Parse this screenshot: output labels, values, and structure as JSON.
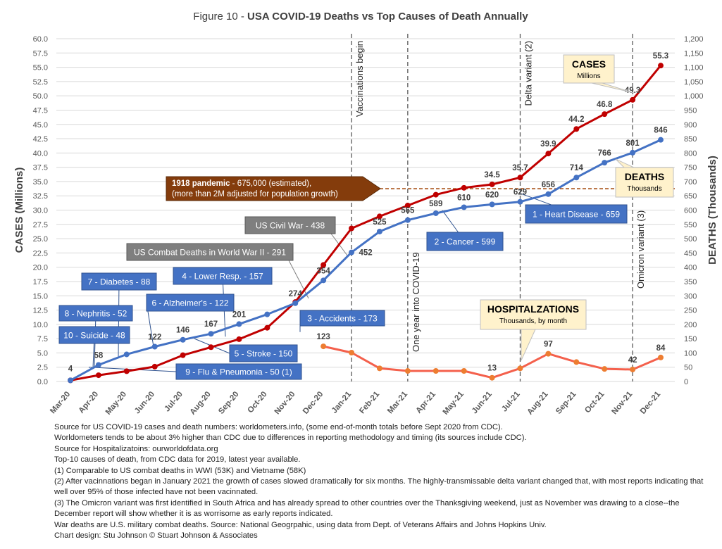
{
  "chart_data": {
    "type": "line",
    "title_prefix": "Figure 10 - ",
    "title": "USA COVID-19 Deaths vs Top Causes of Death Annually",
    "ylabel_left": "CASES (Millions)",
    "ylabel_right": "DEATHS (Thousands)",
    "left_axis": {
      "min": 0,
      "max": 60,
      "step": 2.5
    },
    "right_axis": {
      "min": 0,
      "max": 1200,
      "step": 50
    },
    "categories": [
      "Mar-20",
      "Apr-20",
      "May-20",
      "Jun-20",
      "Jul-20",
      "Aug-20",
      "Sep-20",
      "Oct-20",
      "Nov-20",
      "Dec-20",
      "Jan-21",
      "Feb-21",
      "Mar-21",
      "Apr-21",
      "May-21",
      "Jun-21",
      "Jul-21",
      "Aug-21",
      "Sep-21",
      "Oct-21",
      "Nov-21",
      "Dec-21"
    ],
    "series": [
      {
        "name": "CASES",
        "axis": "left",
        "color": "#C00000",
        "values": [
          0.2,
          1.1,
          1.8,
          2.6,
          4.6,
          6.0,
          7.4,
          9.4,
          13.9,
          20.4,
          26.8,
          28.9,
          30.8,
          32.7,
          33.9,
          34.5,
          35.7,
          39.9,
          44.2,
          46.8,
          49.3,
          55.3
        ],
        "labels": [
          null,
          null,
          null,
          null,
          null,
          null,
          null,
          null,
          null,
          null,
          null,
          null,
          null,
          null,
          null,
          "34.5",
          "35.7",
          "39.9",
          "44.2",
          "46.8",
          "49.3",
          "55.3"
        ]
      },
      {
        "name": "DEATHS",
        "axis": "right",
        "color": "#4472C4",
        "values": [
          4,
          58,
          95,
          122,
          146,
          167,
          201,
          235,
          274,
          354,
          452,
          525,
          565,
          589,
          610,
          620,
          629,
          656,
          714,
          766,
          801,
          846
        ],
        "labels": [
          "4",
          "58",
          null,
          "122",
          "146",
          "167",
          "201",
          null,
          "274",
          "354",
          "452",
          "525",
          "565",
          "589",
          "610",
          "620",
          "629",
          "656",
          "714",
          "766",
          "801",
          "846"
        ]
      },
      {
        "name": "HOSPITALZATIONS",
        "axis": "right",
        "color": "#F4604C",
        "values": [
          null,
          null,
          null,
          null,
          null,
          null,
          null,
          null,
          null,
          123,
          101,
          46,
          37,
          37,
          37,
          13,
          46,
          97,
          68,
          44,
          42,
          84
        ],
        "labels": [
          null,
          null,
          null,
          null,
          null,
          null,
          null,
          null,
          null,
          "123",
          null,
          null,
          null,
          null,
          null,
          "13",
          null,
          "97",
          null,
          null,
          "42",
          "84"
        ]
      }
    ],
    "reference_line": {
      "value": 675,
      "axis": "right",
      "color": "#A04000"
    },
    "vertical_markers": [
      {
        "category": "Jan-21",
        "label": "Vaccinations begin"
      },
      {
        "category": "Mar-21",
        "label": "One year into COVID-19"
      },
      {
        "category": "Jul-21",
        "label": "Delta variant (2)"
      },
      {
        "category": "Nov-21",
        "label": "Omicron variant (3)"
      }
    ],
    "series_callouts": [
      {
        "id": "cases",
        "title": "CASES",
        "subtitle": "Millions"
      },
      {
        "id": "deaths",
        "title": "DEATHS",
        "subtitle": "Thousands"
      },
      {
        "id": "hosp",
        "title": "HOSPITALZATIONS",
        "subtitle": "Thousands, by month"
      }
    ],
    "pandemic_callout": {
      "bold": "1918 pandemic",
      "text": " - 675,000 (estimated),",
      "line2": "(more than 2M adjusted for population growth)"
    },
    "cause_boxes": [
      {
        "label": "1 - Heart Disease - 659",
        "value": 659
      },
      {
        "label": "2 - Cancer - 599",
        "value": 599
      },
      {
        "label": "3 - Accidents - 173",
        "value": 173
      },
      {
        "label": "4 - Lower Resp.  - 157",
        "value": 157
      },
      {
        "label": "5 - Stroke - 150",
        "value": 150
      },
      {
        "label": "6 - Alzheimer's - 122",
        "value": 122
      },
      {
        "label": "7 - Diabetes - 88",
        "value": 88
      },
      {
        "label": "8 - Nephritis - 52",
        "value": 52
      },
      {
        "label": "9 - Flu & Pneumonia - 50 (1)",
        "value": 50
      },
      {
        "label": "10 - Suicide - 48",
        "value": 48
      }
    ],
    "war_boxes": [
      {
        "label": "US Civil War - 438",
        "value": 438
      },
      {
        "label": "US Combat Deaths in World War II - 291",
        "value": 291
      }
    ],
    "grid": true
  },
  "notes": [
    "Source for US COVID-19 cases and death numbers: worldometers.info, (some end-of-month totals before Sept 2020 from CDC).",
    "Worldometers tends to be about 3% higher than CDC due to differences in reporting methodology and timing (its sources include CDC).",
    "Source for Hospitalizatoins: ourworldofdata.org",
    "Top-10 causes of death, from CDC data for 2019, latest year available.",
    "(1) Comparable to US combat deaths in WWI (53K) and Vietname (58K)",
    "(2) After vacinnations began in January 2021 the growth of cases slowed dramatically for six months. The highly-transmissable delta variant changed that, with most reports indicating that well over 95% of those infected have not been vacinnated.",
    "(3) The Omicron variant was first identified in South Africa and has already spread to other countries over the Thanksgiving weekend, just as November was drawing to a close--the December report will show whether it is as worrisome as early reports indicated.",
    "War deaths are U.S. military combat deaths.  Source: National Geogrpahic, using data from Dept. of Veterans Affairs and Johns Hopkins Univ.",
    "Chart design: Stu Johnson © Stuart Johnson & Associates"
  ]
}
